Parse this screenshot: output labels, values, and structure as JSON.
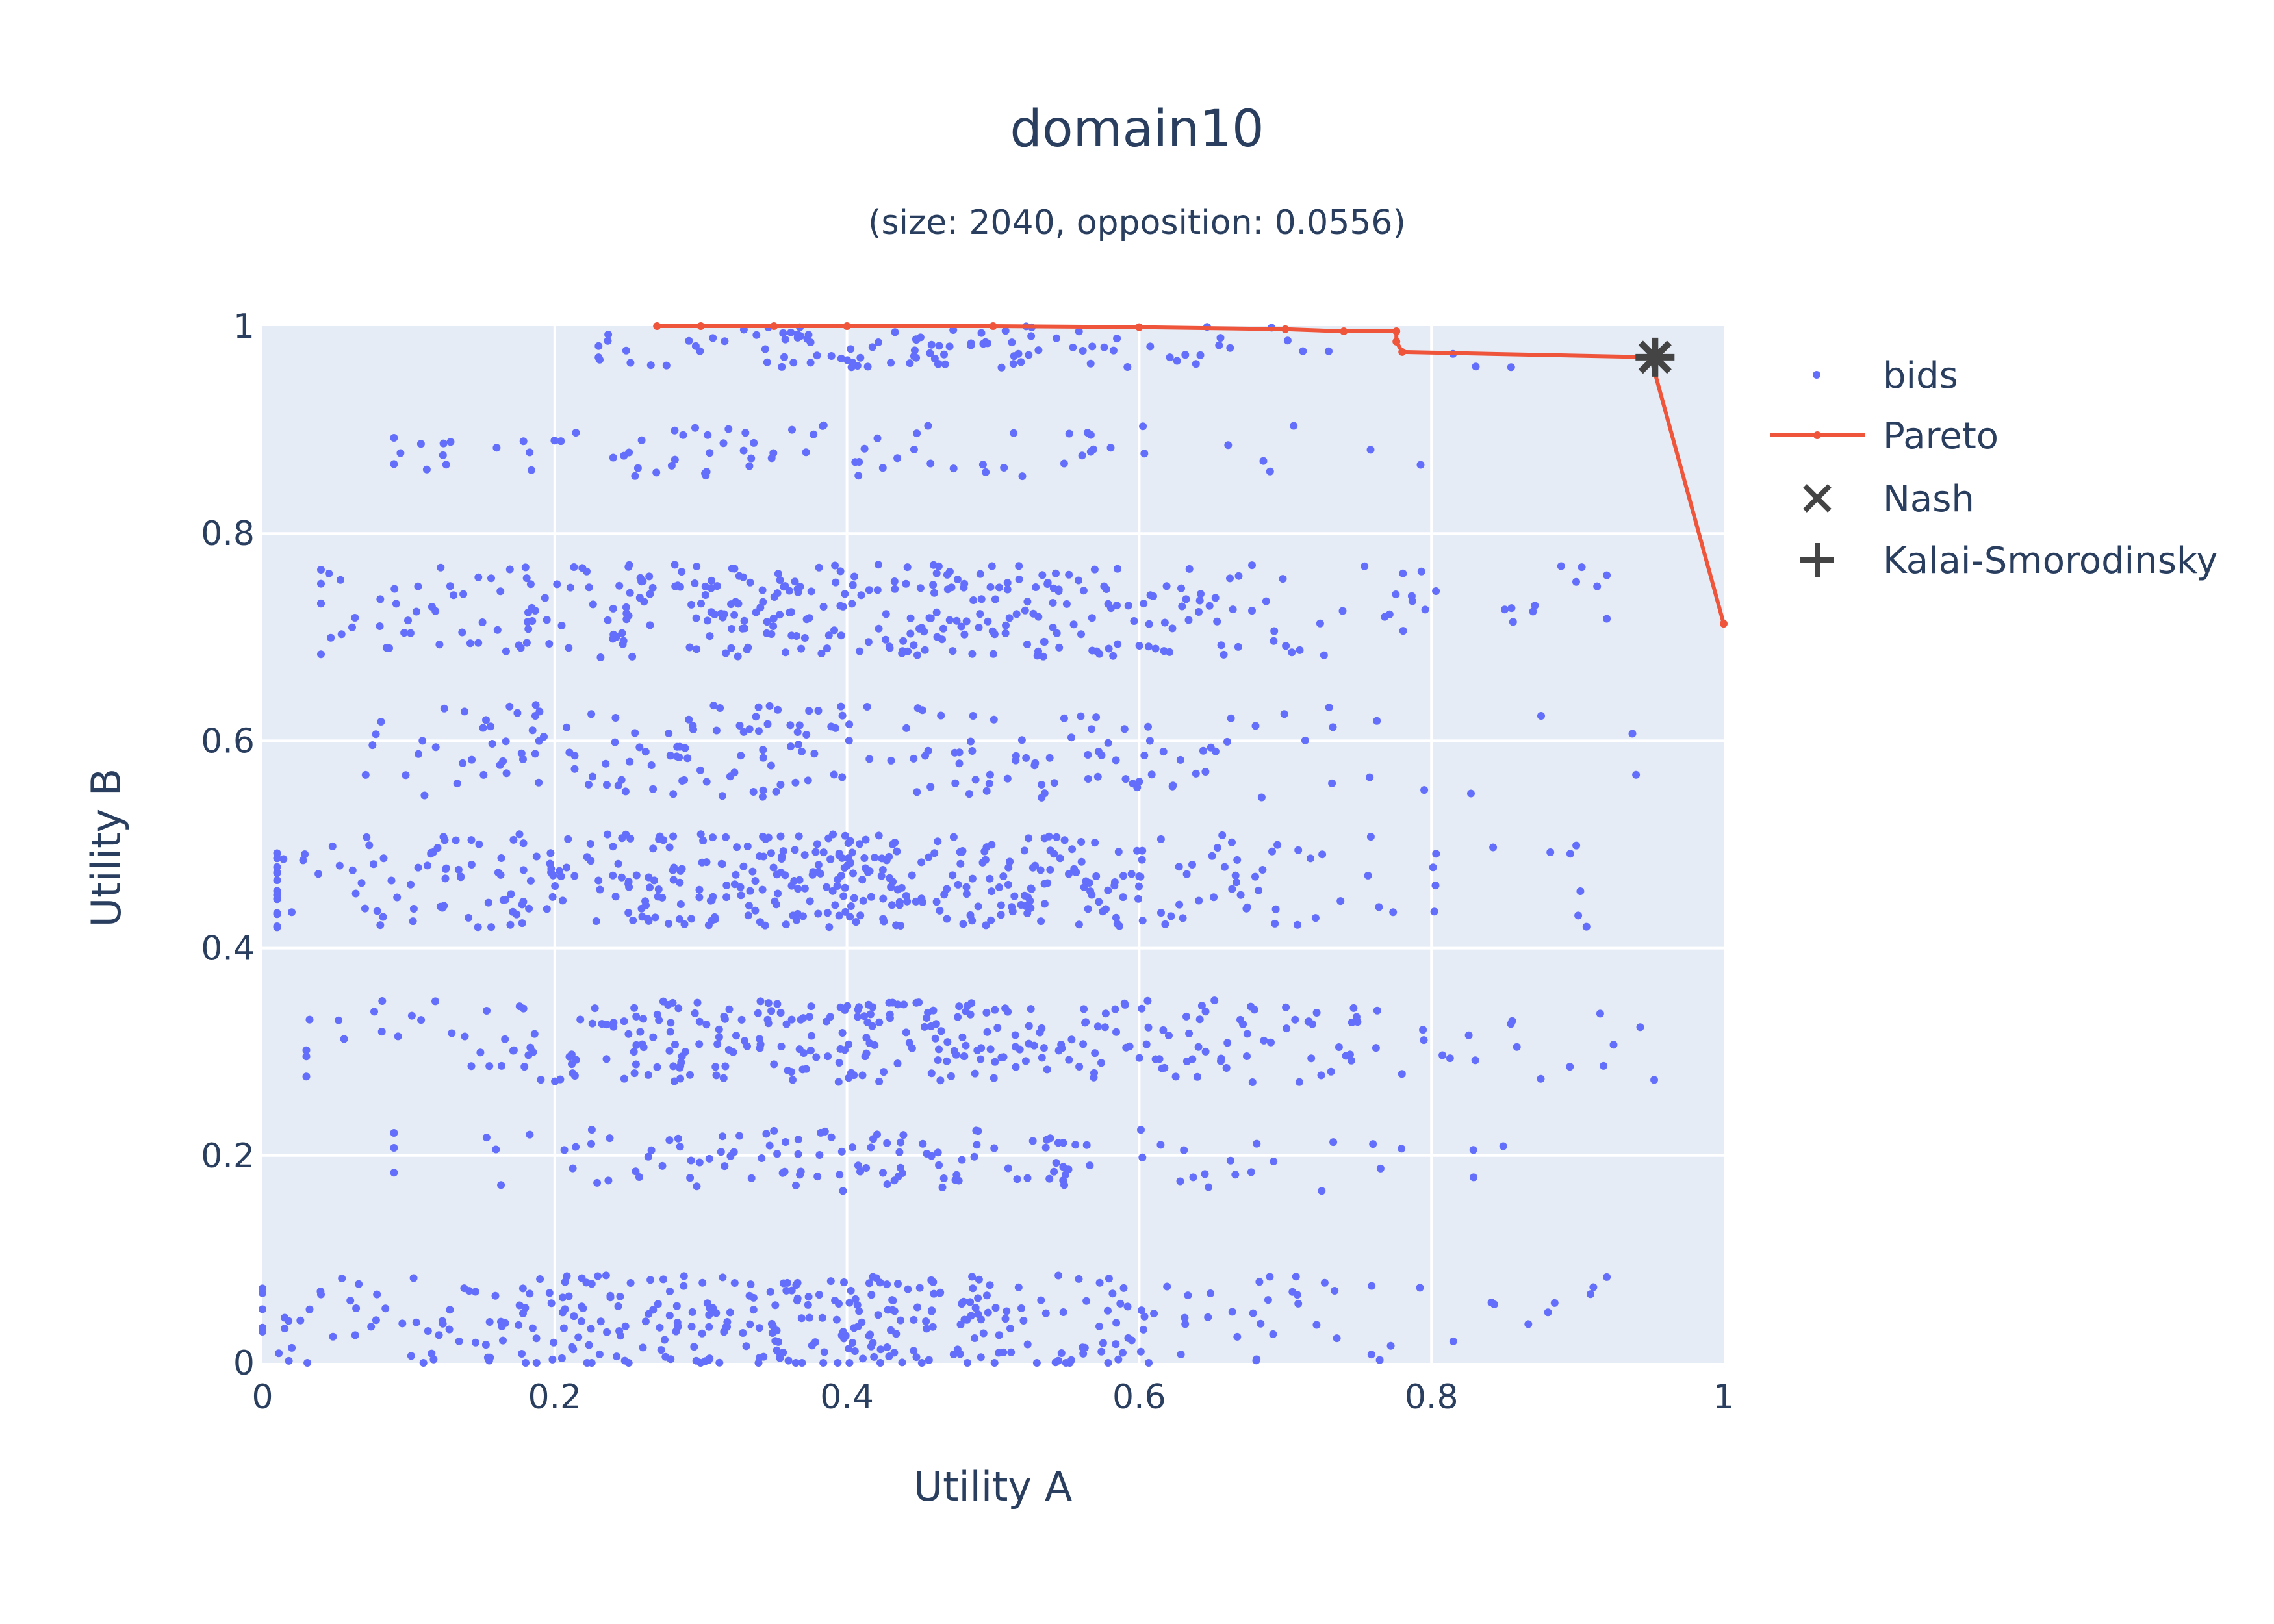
{
  "chart_data": {
    "type": "scatter",
    "title": "domain10",
    "subtitle": "(size: 2040, opposition: 0.0556)",
    "xlabel": "Utility A",
    "ylabel": "Utility B",
    "xlim": [
      0,
      1
    ],
    "ylim": [
      0,
      1
    ],
    "x_ticks": [
      "0",
      "0.2",
      "0.4",
      "0.6",
      "0.8",
      "1"
    ],
    "y_ticks": [
      "0",
      "0.2",
      "0.4",
      "0.6",
      "0.8",
      "1"
    ],
    "grid": true,
    "legend_position": "right",
    "colors": {
      "plot_background": "#e5ecf6",
      "grid": "#ffffff",
      "bids": "#636efa",
      "pareto": "#ef553b",
      "markers": "#444444",
      "text": "#2a3f5f"
    },
    "series": [
      {
        "name": "bids",
        "mode": "markers",
        "bands": [
          {
            "y": 0.04,
            "spread": 0.045,
            "count": 380,
            "x_min": 0.0,
            "x_max": 0.92,
            "x_center": 0.38
          },
          {
            "y": 0.195,
            "spread": 0.03,
            "count": 130,
            "x_min": 0.09,
            "x_max": 0.85,
            "x_center": 0.4
          },
          {
            "y": 0.31,
            "spread": 0.04,
            "count": 330,
            "x_min": 0.03,
            "x_max": 0.99,
            "x_center": 0.42
          },
          {
            "y": 0.465,
            "spread": 0.045,
            "count": 450,
            "x_min": 0.01,
            "x_max": 0.93,
            "x_center": 0.36
          },
          {
            "y": 0.59,
            "spread": 0.045,
            "count": 200,
            "x_min": 0.06,
            "x_max": 0.94,
            "x_center": 0.4
          },
          {
            "y": 0.725,
            "spread": 0.045,
            "count": 360,
            "x_min": 0.04,
            "x_max": 0.92,
            "x_center": 0.4
          },
          {
            "y": 0.88,
            "spread": 0.025,
            "count": 80,
            "x_min": 0.09,
            "x_max": 0.8,
            "x_center": 0.35
          },
          {
            "y": 0.98,
            "spread": 0.02,
            "count": 110,
            "x_min": 0.23,
            "x_max": 0.87,
            "x_center": 0.45
          }
        ]
      },
      {
        "name": "Pareto",
        "mode": "lines+markers",
        "x": [
          0.27,
          0.3,
          0.35,
          0.4,
          0.5,
          0.6,
          0.7,
          0.74,
          0.776,
          0.776,
          0.78,
          0.95,
          1.0
        ],
        "y": [
          1.0,
          1.0,
          1.0,
          1.0,
          1.0,
          0.999,
          0.997,
          0.995,
          0.995,
          0.985,
          0.975,
          0.97,
          0.713
        ]
      },
      {
        "name": "Nash",
        "mode": "markers",
        "symbol": "x",
        "x": [
          0.953
        ],
        "y": [
          0.97
        ]
      },
      {
        "name": "Kalai-Smorodinsky",
        "mode": "markers",
        "symbol": "cross",
        "x": [
          0.953
        ],
        "y": [
          0.97
        ]
      }
    ]
  }
}
